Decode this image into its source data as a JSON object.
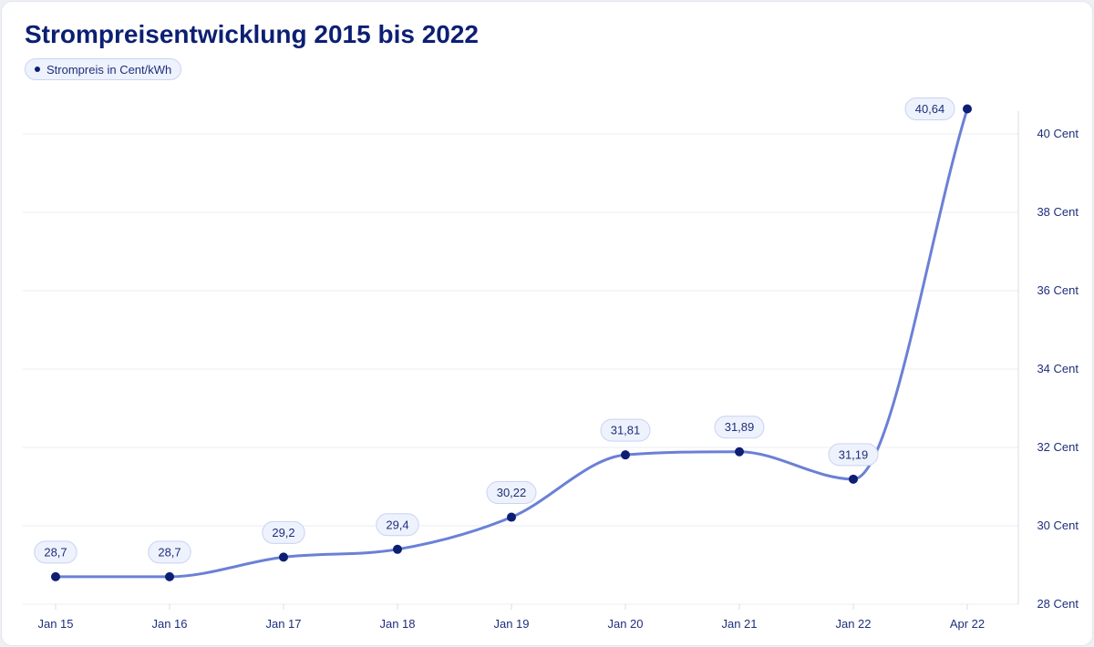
{
  "title": "Strompreisentwicklung 2015 bis 2022",
  "colors": {
    "line": "#6b80d6",
    "point": "#0c1f73",
    "text": "#1e2f7a",
    "title": "#0c1f73",
    "pill_bg": "#eef2fd",
    "pill_border": "#c9d3f3",
    "grid": "#ebedf2"
  },
  "chart_data": {
    "type": "line",
    "title": "Strompreisentwicklung 2015 bis 2022",
    "categories": [
      "Jan 15",
      "Jan 16",
      "Jan 17",
      "Jan 18",
      "Jan 19",
      "Jan 20",
      "Jan 21",
      "Jan 22",
      "Apr 22"
    ],
    "series": [
      {
        "name": "Strompreis in Cent/kWh",
        "values": [
          28.7,
          28.7,
          29.2,
          29.4,
          30.22,
          31.81,
          31.89,
          31.19,
          40.64
        ],
        "labels": [
          "28,7",
          "28,7",
          "29,2",
          "29,4",
          "30,22",
          "31,81",
          "31,89",
          "31,19",
          "40,64"
        ]
      }
    ],
    "y_ticks": [
      28,
      30,
      32,
      34,
      36,
      38,
      40
    ],
    "y_tick_labels": [
      "28 Cent",
      "30 Cent",
      "32 Cent",
      "34 Cent",
      "36 Cent",
      "38 Cent",
      "40 Cent"
    ],
    "ylim": [
      28,
      40.5
    ],
    "y_axis_side": "right",
    "grid": true,
    "curve": "smooth",
    "legend_position": "top-left",
    "xlabel": "",
    "ylabel": ""
  }
}
